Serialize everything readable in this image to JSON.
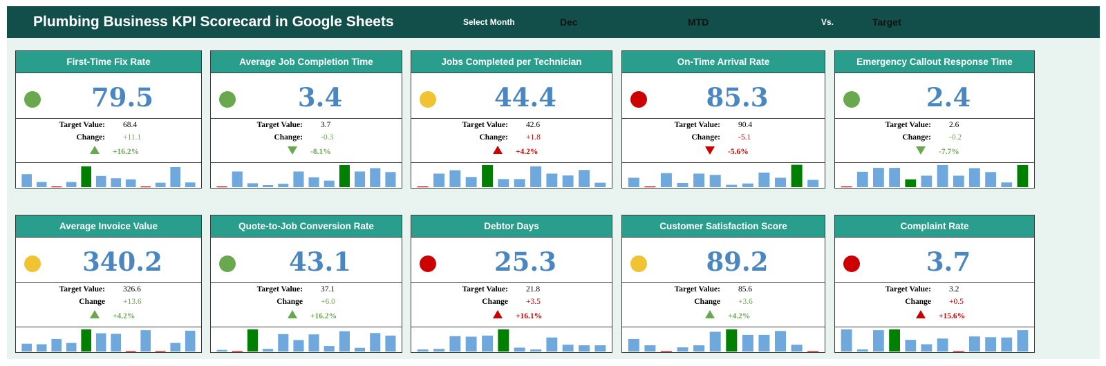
{
  "header": {
    "title": "Plumbing Business KPI Scorecard in Google Sheets",
    "select_month_label": "Select Month",
    "month": "Dec",
    "period": "MTD",
    "vs_label": "Vs.",
    "compare": "Target"
  },
  "colors": {
    "good": "#6aa84f",
    "warn": "#f1c232",
    "bad": "#cc0000",
    "bar": "#6fa8dc",
    "bar_highlight": "#008000",
    "header_band": "#134f4a",
    "card_header": "#2a9e8c",
    "value_text": "#4a86c0"
  },
  "cards": [
    {
      "title": "First-Time Fix Rate",
      "value": "79.5",
      "status": "good",
      "target_label": "Target Value:",
      "target": "68.4",
      "change_label": "Change:",
      "change": "+11.1",
      "direction": "up",
      "trend": "good",
      "change_pct": "+16.2%",
      "spark": [
        5,
        2,
        0,
        2,
        8,
        4.3,
        3.4,
        3,
        0,
        1.7,
        7.7,
        1.8
      ],
      "highlight": 4
    },
    {
      "title": "Average Job Completion Time",
      "value": "3.4",
      "status": "good",
      "target_label": "Target Value:",
      "target": "3.7",
      "change_label": "Change:",
      "change": "-0.3",
      "direction": "down",
      "trend": "good",
      "change_pct": "-8.1%",
      "spark": [
        0,
        6,
        1.5,
        0.8,
        1.3,
        6,
        3.8,
        2.5,
        8.5,
        6,
        7.3,
        5.8
      ],
      "highlight": 8
    },
    {
      "title": "Jobs Completed per Technician",
      "value": "44.4",
      "status": "warn",
      "target_label": "Target Value:",
      "target": "42.6",
      "change_label": "Change:",
      "change": "+1.8",
      "direction": "up",
      "trend": "bad",
      "change_pct": "+4.2%",
      "spark": [
        0,
        5.2,
        6.5,
        3.9,
        8.5,
        3.1,
        3.1,
        8,
        5.2,
        4.5,
        6.6,
        1.7
      ],
      "highlight": 4
    },
    {
      "title": "On-Time Arrival Rate",
      "value": "85.3",
      "status": "bad",
      "target_label": "Target Value:",
      "target": "90.4",
      "change_label": "Change:",
      "change": "-5.1",
      "direction": "down",
      "trend": "bad",
      "change_pct": "-5.6%",
      "spark": [
        3.6,
        0,
        5.4,
        1.6,
        5.2,
        4.7,
        0.9,
        1.4,
        5.6,
        3.6,
        8.6,
        2.8
      ],
      "highlight": 10
    },
    {
      "title": "Emergency Callout Response Time",
      "value": "2.4",
      "status": "good",
      "target_label": "Target Value:",
      "target": "2.6",
      "change_label": "Change:",
      "change": "-0.2",
      "direction": "down",
      "trend": "good",
      "change_pct": "-7.7%",
      "spark": [
        0,
        5.9,
        7.4,
        7.4,
        3,
        4.4,
        8.5,
        4.4,
        7.3,
        5.8,
        1.8,
        8.5
      ],
      "highlight": [
        4,
        11
      ]
    },
    {
      "title": "Average Invoice Value",
      "value": "340.2",
      "status": "warn",
      "target_label": "Target Value:",
      "target": "326.6",
      "change_label": "Change",
      "change": "+13.6",
      "direction": "up",
      "trend": "good",
      "change_pct": "+4.2%",
      "spark": [
        3,
        2.8,
        4.8,
        3.3,
        8.5,
        7,
        6.8,
        0,
        8.2,
        0,
        3.3,
        8
      ],
      "highlight": 4
    },
    {
      "title": "Quote-to-Job Conversion Rate",
      "value": "43.1",
      "status": "good",
      "target_label": "Target Value:",
      "target": "37.1",
      "change_label": "Change",
      "change": "+6.0",
      "direction": "up",
      "trend": "good",
      "change_pct": "+16.2%",
      "spark": [
        0.6,
        0,
        8.5,
        1,
        6.7,
        4.4,
        6.6,
        2.1,
        7.8,
        1.4,
        7.1,
        6.1
      ],
      "highlight": 2
    },
    {
      "title": "Debtor Days",
      "value": "25.3",
      "status": "bad",
      "target_label": "Target Value:",
      "target": "21.8",
      "change_label": "Change",
      "change": "+3.5",
      "direction": "up",
      "trend": "bad",
      "change_pct": "+16.1%",
      "spark": [
        0.8,
        1,
        5.9,
        5.7,
        6.1,
        8.5,
        1.5,
        0.8,
        5.4,
        2.6,
        2.4,
        2.4
      ],
      "highlight": 5
    },
    {
      "title": "Customer Satisfaction Score",
      "value": "89.2",
      "status": "warn",
      "target_label": "Target Value:",
      "target": "85.6",
      "change_label": "Change",
      "change": "+3.6",
      "direction": "up",
      "trend": "good",
      "change_pct": "+4.2%",
      "spark": [
        4.8,
        2.4,
        0,
        1.6,
        2.4,
        7.6,
        8.5,
        6.4,
        6.4,
        7.9,
        2.6,
        0
      ],
      "highlight": 6
    },
    {
      "title": "Complaint Rate",
      "value": "3.7",
      "status": "bad",
      "target_label": "Target Value:",
      "target": "3.2",
      "change_label": "Change",
      "change": "+0.5",
      "direction": "up",
      "trend": "bad",
      "change_pct": "+15.6%",
      "spark": [
        8.5,
        0.8,
        8.2,
        8.5,
        4.5,
        2.8,
        5,
        0,
        5.8,
        5.5,
        5.4,
        8.2
      ],
      "highlight": 3
    }
  ]
}
